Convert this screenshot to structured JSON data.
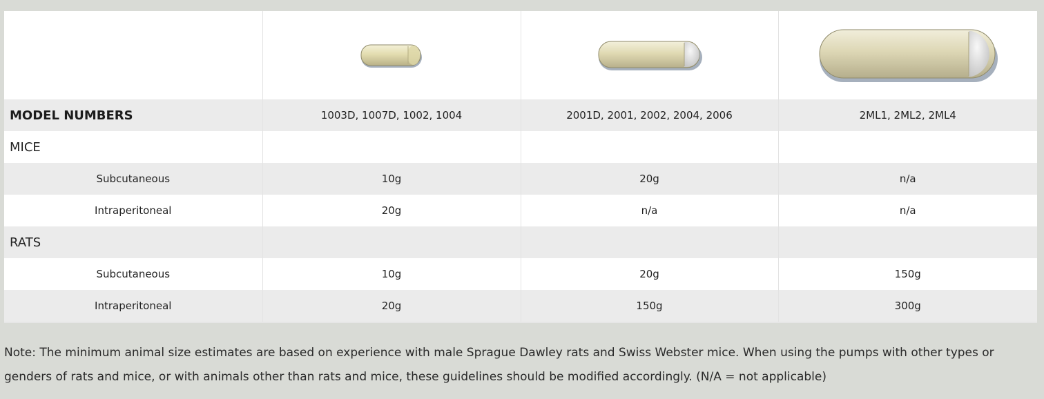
{
  "table": {
    "header": {
      "label": "MODEL NUMBERS",
      "models": [
        "1003D, 1007D, 1002, 1004",
        "2001D, 2001, 2002, 2004, 2006",
        "2ML1, 2ML2, 2ML4"
      ]
    },
    "groups": [
      {
        "name": "MICE",
        "rows": [
          {
            "route": "Subcutaneous",
            "values": [
              "10g",
              "20g",
              "n/a"
            ]
          },
          {
            "route": "Intraperitoneal",
            "values": [
              "20g",
              "n/a",
              "n/a"
            ]
          }
        ]
      },
      {
        "name": "RATS",
        "rows": [
          {
            "route": "Subcutaneous",
            "values": [
              "10g",
              "20g",
              "150g"
            ]
          },
          {
            "route": "Intraperitoneal",
            "values": [
              "20g",
              "150g",
              "300g"
            ]
          }
        ]
      }
    ]
  },
  "note": "Note: The minimum animal size estimates are based on experience with male Sprague Dawley rats and Swiss Webster mice. When using the pumps with other types or genders of rats and mice, or with animals other than rats and mice, these guidelines should be modified accordingly. (N/A = not applicable)",
  "pump_images": [
    "pump-small-image",
    "pump-medium-image",
    "pump-large-image"
  ]
}
